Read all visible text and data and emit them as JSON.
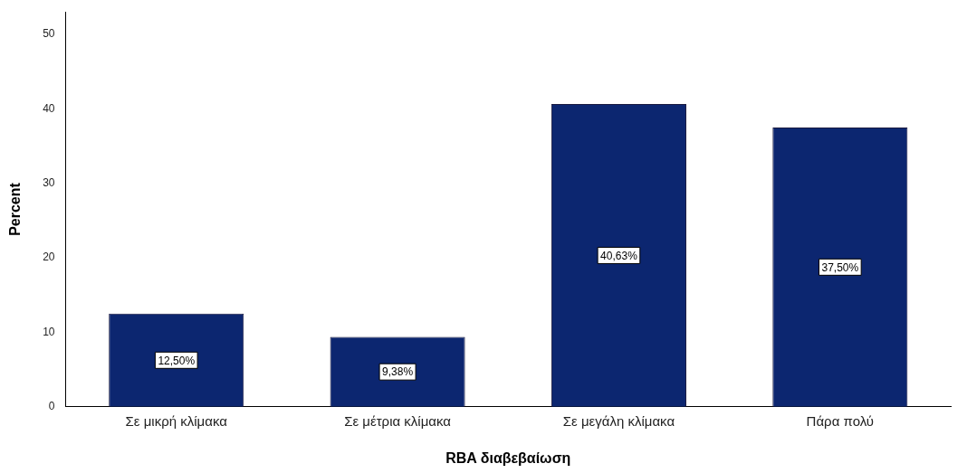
{
  "chart_data": {
    "type": "bar",
    "xlabel": "RBA διαβεβαίωση",
    "ylabel": "Percent",
    "categories": [
      "Σε μικρή κλίμακα",
      "Σε μέτρια κλίμακα",
      "Σε μεγάλη κλίμακα",
      "Πάρα πολύ"
    ],
    "values": [
      12.5,
      9.38,
      40.63,
      37.5
    ],
    "value_labels": [
      "12,50%",
      "9,38%",
      "40,63%",
      "37,50%"
    ],
    "color": "#0c2670",
    "ylim": [
      0,
      53
    ],
    "yticks": [
      0,
      10,
      20,
      30,
      40,
      50
    ],
    "grid": false,
    "legend": false
  }
}
